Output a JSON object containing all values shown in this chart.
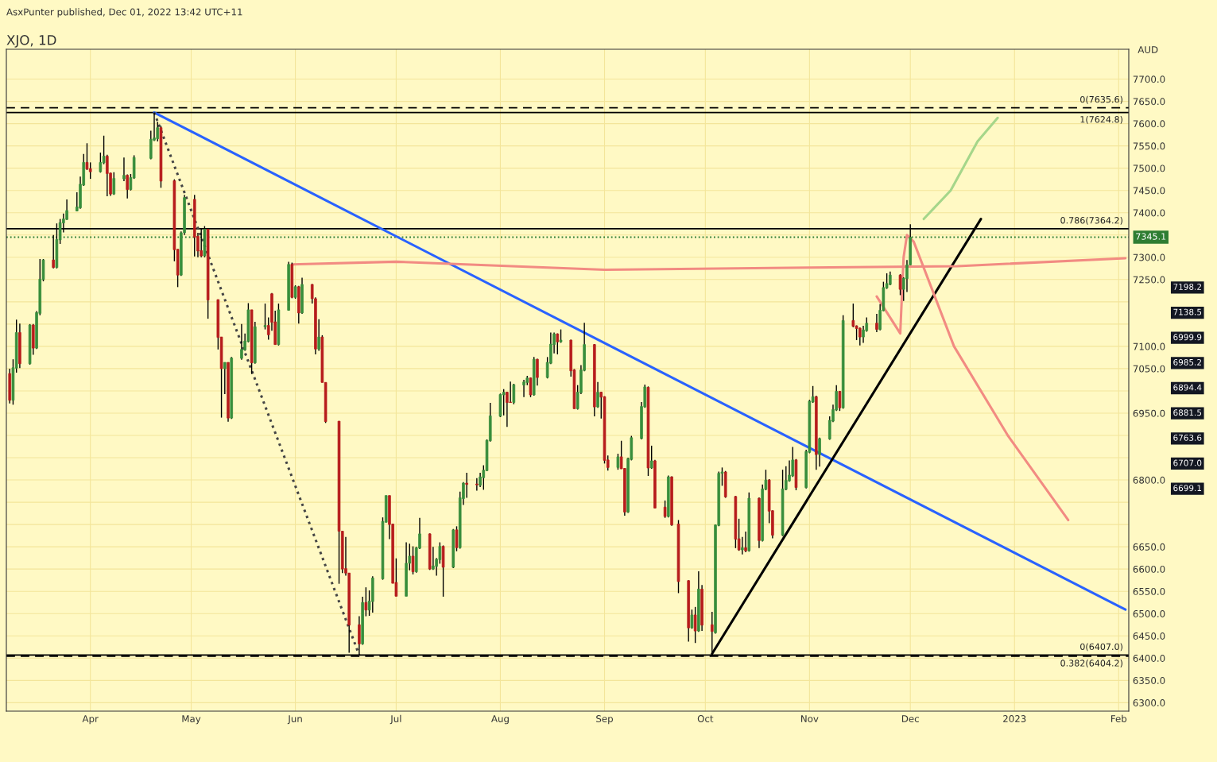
{
  "chart_data": {
    "type": "candlestick",
    "title": "XJO, 1D",
    "ylabel": "AUD",
    "annotations": [
      "AsxPunter published, Dec 01, 2022 13:42 UTC+11",
      "7198.2",
      "7138.5",
      "6999.9",
      "6985.2",
      "6894.4",
      "6881.5",
      "6763.6",
      "6707.0",
      "6699.1"
    ],
    "x": [
      "2022-03-08",
      "2022-03-09",
      "2022-03-10",
      "2022-03-11",
      "2022-03-14",
      "2022-03-15",
      "2022-03-16",
      "2022-03-17",
      "2022-03-18",
      "2022-03-21",
      "2022-03-22",
      "2022-03-23",
      "2022-03-24",
      "2022-03-25",
      "2022-03-28",
      "2022-03-29",
      "2022-03-30",
      "2022-03-31",
      "2022-04-01",
      "2022-04-04",
      "2022-04-05",
      "2022-04-06",
      "2022-04-07",
      "2022-04-08",
      "2022-04-11",
      "2022-04-12",
      "2022-04-13",
      "2022-04-14",
      "2022-04-19",
      "2022-04-20",
      "2022-04-21",
      "2022-04-22",
      "2022-04-26",
      "2022-04-27",
      "2022-04-28",
      "2022-04-29",
      "2022-05-02",
      "2022-05-03",
      "2022-05-04",
      "2022-05-05",
      "2022-05-06",
      "2022-05-09",
      "2022-05-10",
      "2022-05-11",
      "2022-05-12",
      "2022-05-13",
      "2022-05-16",
      "2022-05-17",
      "2022-05-18",
      "2022-05-19",
      "2022-05-20",
      "2022-05-23",
      "2022-05-24",
      "2022-05-25",
      "2022-05-26",
      "2022-05-27",
      "2022-05-30",
      "2022-05-31",
      "2022-06-01",
      "2022-06-02",
      "2022-06-03",
      "2022-06-06",
      "2022-06-07",
      "2022-06-08",
      "2022-06-09",
      "2022-06-10",
      "2022-06-14",
      "2022-06-15",
      "2022-06-16",
      "2022-06-17",
      "2022-06-20",
      "2022-06-21",
      "2022-06-22",
      "2022-06-23",
      "2022-06-24",
      "2022-06-27",
      "2022-06-28",
      "2022-06-29",
      "2022-06-30",
      "2022-07-01",
      "2022-07-04",
      "2022-07-05",
      "2022-07-06",
      "2022-07-07",
      "2022-07-08",
      "2022-07-11",
      "2022-07-12",
      "2022-07-13",
      "2022-07-14",
      "2022-07-15",
      "2022-07-18",
      "2022-07-19",
      "2022-07-20",
      "2022-07-21",
      "2022-07-22",
      "2022-07-25",
      "2022-07-26",
      "2022-07-27",
      "2022-07-28",
      "2022-07-29",
      "2022-08-01",
      "2022-08-02",
      "2022-08-03",
      "2022-08-04",
      "2022-08-05",
      "2022-08-08",
      "2022-08-09",
      "2022-08-10",
      "2022-08-11",
      "2022-08-12",
      "2022-08-15",
      "2022-08-16",
      "2022-08-17",
      "2022-08-18",
      "2022-08-19",
      "2022-08-22",
      "2022-08-23",
      "2022-08-24",
      "2022-08-25",
      "2022-08-26",
      "2022-08-29",
      "2022-08-30",
      "2022-08-31",
      "2022-09-01",
      "2022-09-02",
      "2022-09-05",
      "2022-09-06",
      "2022-09-07",
      "2022-09-08",
      "2022-09-09",
      "2022-09-12",
      "2022-09-13",
      "2022-09-14",
      "2022-09-15",
      "2022-09-16",
      "2022-09-19",
      "2022-09-20",
      "2022-09-21",
      "2022-09-23",
      "2022-09-26",
      "2022-09-27",
      "2022-09-28",
      "2022-09-29",
      "2022-09-30",
      "2022-10-03",
      "2022-10-04",
      "2022-10-05",
      "2022-10-06",
      "2022-10-07",
      "2022-10-10",
      "2022-10-11",
      "2022-10-12",
      "2022-10-13",
      "2022-10-14",
      "2022-10-17",
      "2022-10-18",
      "2022-10-19",
      "2022-10-20",
      "2022-10-21",
      "2022-10-24",
      "2022-10-25",
      "2022-10-26",
      "2022-10-27",
      "2022-10-28",
      "2022-10-31",
      "2022-11-01",
      "2022-11-02",
      "2022-11-03",
      "2022-11-04",
      "2022-11-07",
      "2022-11-08",
      "2022-11-09",
      "2022-11-10",
      "2022-11-11",
      "2022-11-14",
      "2022-11-15",
      "2022-11-16",
      "2022-11-17",
      "2022-11-18",
      "2022-11-21",
      "2022-11-22",
      "2022-11-23",
      "2022-11-24",
      "2022-11-25",
      "2022-11-28",
      "2022-11-29",
      "2022-11-30",
      "2022-12-01"
    ],
    "ohlc": [
      [
        7039,
        7050,
        6972,
        6979
      ],
      [
        6979,
        7071,
        6969,
        7052
      ],
      [
        7051,
        7160,
        7041,
        7131
      ],
      [
        7131,
        7151,
        7051,
        7061
      ],
      [
        7061,
        7150,
        7059,
        7148
      ],
      [
        7148,
        7150,
        7081,
        7096
      ],
      [
        7096,
        7179,
        7094,
        7176
      ],
      [
        7174,
        7296,
        7170,
        7251
      ],
      [
        7250,
        7296,
        7246,
        7294
      ],
      [
        7294,
        7350,
        7275,
        7277
      ],
      [
        7277,
        7376,
        7275,
        7340
      ],
      [
        7339,
        7386,
        7330,
        7378
      ],
      [
        7377,
        7398,
        7356,
        7386
      ],
      [
        7385,
        7430,
        7384,
        7405
      ],
      [
        7404,
        7446,
        7403,
        7413
      ],
      [
        7411,
        7481,
        7409,
        7464
      ],
      [
        7462,
        7532,
        7460,
        7513
      ],
      [
        7513,
        7556,
        7496,
        7498
      ],
      [
        7499,
        7513,
        7476,
        7492
      ],
      [
        7492,
        7535,
        7490,
        7513
      ],
      [
        7512,
        7573,
        7509,
        7527
      ],
      [
        7527,
        7530,
        7437,
        7488
      ],
      [
        7489,
        7490,
        7438,
        7442
      ],
      [
        7442,
        7491,
        7440,
        7477
      ],
      [
        7476,
        7524,
        7471,
        7484
      ],
      [
        7484,
        7486,
        7432,
        7452
      ],
      [
        7452,
        7487,
        7450,
        7479
      ],
      [
        7478,
        7529,
        7476,
        7524
      ],
      [
        7522,
        7584,
        7520,
        7565
      ],
      [
        7563,
        7625,
        7561,
        7568
      ],
      [
        7566,
        7604,
        7560,
        7591
      ],
      [
        7591,
        7595,
        7456,
        7471
      ],
      [
        7472,
        7475,
        7291,
        7317
      ],
      [
        7318,
        7318,
        7233,
        7260
      ],
      [
        7260,
        7358,
        7258,
        7355
      ],
      [
        7355,
        7440,
        7350,
        7434
      ],
      [
        7430,
        7440,
        7302,
        7345
      ],
      [
        7347,
        7355,
        7300,
        7314
      ],
      [
        7315,
        7365,
        7300,
        7303
      ],
      [
        7303,
        7370,
        7300,
        7363
      ],
      [
        7363,
        7365,
        7162,
        7204
      ],
      [
        7205,
        7205,
        7093,
        7120
      ],
      [
        7121,
        7121,
        6940,
        7050
      ],
      [
        7050,
        7064,
        6993,
        7064
      ],
      [
        7064,
        7064,
        6931,
        6939
      ],
      [
        6939,
        7076,
        6937,
        7074
      ],
      [
        7073,
        7150,
        7070,
        7093
      ],
      [
        7092,
        7129,
        7090,
        7112
      ],
      [
        7111,
        7197,
        7109,
        7182
      ],
      [
        7182,
        7182,
        7038,
        7063
      ],
      [
        7063,
        7155,
        7061,
        7144
      ],
      [
        7144,
        7196,
        7138,
        7147
      ],
      [
        7147,
        7165,
        7115,
        7126
      ],
      [
        7218,
        7220,
        7135,
        7154
      ],
      [
        7155,
        7180,
        7104,
        7104
      ],
      [
        7104,
        7196,
        7102,
        7182
      ],
      [
        7181,
        7290,
        7180,
        7284
      ],
      [
        7284,
        7288,
        7208,
        7210
      ],
      [
        7210,
        7237,
        7207,
        7234
      ],
      [
        7234,
        7236,
        7151,
        7175
      ],
      [
        7175,
        7254,
        7173,
        7239
      ],
      [
        7239,
        7240,
        7196,
        7207
      ],
      [
        7207,
        7210,
        7082,
        7094
      ],
      [
        7094,
        7161,
        7090,
        7121
      ],
      [
        7121,
        7125,
        7019,
        7019
      ],
      [
        7019,
        7019,
        6928,
        6931
      ],
      [
        6932,
        6932,
        6567,
        6685
      ],
      [
        6685,
        6685,
        6591,
        6600
      ],
      [
        6601,
        6672,
        6585,
        6591
      ],
      [
        6591,
        6591,
        6412,
        6474
      ],
      [
        6475,
        6494,
        6407,
        6432
      ],
      [
        6432,
        6538,
        6430,
        6525
      ],
      [
        6525,
        6559,
        6494,
        6508
      ],
      [
        6508,
        6552,
        6495,
        6528
      ],
      [
        6527,
        6584,
        6502,
        6580
      ],
      [
        6578,
        6716,
        6576,
        6707
      ],
      [
        6705,
        6765,
        6705,
        6765
      ],
      [
        6765,
        6765,
        6667,
        6700
      ],
      [
        6701,
        6701,
        6568,
        6568
      ],
      [
        6570,
        6624,
        6539,
        6539
      ],
      [
        6539,
        6660,
        6539,
        6613
      ],
      [
        6613,
        6657,
        6597,
        6629
      ],
      [
        6629,
        6651,
        6588,
        6594
      ],
      [
        6594,
        6650,
        6592,
        6648
      ],
      [
        6647,
        6715,
        6645,
        6679
      ],
      [
        6679,
        6680,
        6598,
        6600
      ],
      [
        6600,
        6650,
        6598,
        6607
      ],
      [
        6606,
        6625,
        6585,
        6622
      ],
      [
        6621,
        6660,
        6612,
        6651
      ],
      [
        6651,
        6653,
        6538,
        6604
      ],
      [
        6604,
        6690,
        6602,
        6688
      ],
      [
        6688,
        6696,
        6640,
        6648
      ],
      [
        6648,
        6774,
        6646,
        6760
      ],
      [
        6758,
        6795,
        6744,
        6793
      ],
      [
        6793,
        6816,
        6760,
        6790
      ],
      [
        6791,
        6804,
        6776,
        6789
      ],
      [
        6788,
        6816,
        6784,
        6807
      ],
      [
        6805,
        6833,
        6778,
        6822
      ],
      [
        6821,
        6891,
        6820,
        6889
      ],
      [
        6888,
        6973,
        6886,
        6944
      ],
      [
        6943,
        6994,
        6941,
        6992
      ],
      [
        6991,
        7004,
        6945,
        6997
      ],
      [
        6997,
        6998,
        6919,
        6974
      ],
      [
        6975,
        7021,
        6973,
        6974
      ],
      [
        6974,
        7016,
        6970,
        7014
      ],
      [
        7013,
        7025,
        6986,
        7020
      ],
      [
        7019,
        7034,
        7013,
        7029
      ],
      [
        7029,
        7030,
        6986,
        6991
      ],
      [
        6991,
        7076,
        6989,
        7071
      ],
      [
        7071,
        7072,
        7012,
        7030
      ],
      [
        7030,
        7076,
        7028,
        7064
      ],
      [
        7062,
        7131,
        7060,
        7105
      ],
      [
        7104,
        7131,
        7084,
        7128
      ],
      [
        7128,
        7129,
        7082,
        7110
      ],
      [
        7110,
        7138,
        7108,
        7114
      ],
      [
        7114,
        7115,
        7032,
        7045
      ],
      [
        7047,
        7049,
        6960,
        6960
      ],
      [
        6960,
        7013,
        6958,
        6997
      ],
      [
        6996,
        7058,
        6993,
        7047
      ],
      [
        7046,
        7153,
        7044,
        7104
      ],
      [
        7104,
        7105,
        6943,
        6964
      ],
      [
        6964,
        7020,
        6962,
        6997
      ],
      [
        6997,
        6998,
        6938,
        6986
      ],
      [
        6987,
        6988,
        6837,
        6844
      ],
      [
        6845,
        6855,
        6821,
        6828
      ],
      [
        6828,
        6859,
        6823,
        6852
      ],
      [
        6852,
        6888,
        6825,
        6825
      ],
      [
        6826,
        6827,
        6720,
        6728
      ],
      [
        6728,
        6850,
        6726,
        6848
      ],
      [
        6846,
        6899,
        6844,
        6895
      ],
      [
        6893,
        6975,
        6891,
        6965
      ],
      [
        6964,
        7014,
        6962,
        7009
      ],
      [
        7008,
        7010,
        6809,
        6827
      ],
      [
        6827,
        6877,
        6825,
        6843
      ],
      [
        6843,
        6845,
        6737,
        6737
      ],
      [
        6739,
        6754,
        6715,
        6718
      ],
      [
        6718,
        6810,
        6716,
        6807
      ],
      [
        6807,
        6808,
        6697,
        6699
      ],
      [
        6701,
        6710,
        6546,
        6572
      ],
      [
        6574,
        6575,
        6437,
        6468
      ],
      [
        6468,
        6509,
        6466,
        6497
      ],
      [
        6497,
        6515,
        6434,
        6461
      ],
      [
        6461,
        6595,
        6459,
        6555
      ],
      [
        6555,
        6564,
        6461,
        6474
      ],
      [
        6475,
        6504,
        6412,
        6460
      ],
      [
        6457,
        6700,
        6455,
        6699
      ],
      [
        6698,
        6819,
        6696,
        6815
      ],
      [
        6815,
        6828,
        6787,
        6818
      ],
      [
        6818,
        6820,
        6760,
        6762
      ],
      [
        6763,
        6764,
        6647,
        6667
      ],
      [
        6668,
        6713,
        6641,
        6643
      ],
      [
        6643,
        6672,
        6633,
        6648
      ],
      [
        6648,
        6684,
        6638,
        6641
      ],
      [
        6641,
        6772,
        6639,
        6759
      ],
      [
        6759,
        6761,
        6647,
        6664
      ],
      [
        6664,
        6790,
        6662,
        6780
      ],
      [
        6779,
        6823,
        6777,
        6800
      ],
      [
        6800,
        6802,
        6703,
        6730
      ],
      [
        6731,
        6732,
        6669,
        6676
      ],
      [
        6676,
        6823,
        6674,
        6780
      ],
      [
        6779,
        6831,
        6777,
        6799
      ],
      [
        6798,
        6844,
        6796,
        6811
      ],
      [
        6809,
        6874,
        6807,
        6845
      ],
      [
        6845,
        6847,
        6777,
        6783
      ],
      [
        6783,
        6868,
        6781,
        6864
      ],
      [
        6862,
        6980,
        6860,
        6977
      ],
      [
        6975,
        7011,
        6973,
        6987
      ],
      [
        6987,
        6989,
        6823,
        6857
      ],
      [
        6857,
        6895,
        6830,
        6893
      ],
      [
        6892,
        6943,
        6890,
        6934
      ],
      [
        6932,
        6969,
        6930,
        6958
      ],
      [
        6957,
        7013,
        6955,
        6999
      ],
      [
        6999,
        7000,
        6955,
        6962
      ],
      [
        6962,
        7170,
        6960,
        7158
      ],
      [
        7158,
        7196,
        7143,
        7145
      ],
      [
        7146,
        7147,
        7114,
        7140
      ],
      [
        7141,
        7142,
        7102,
        7121
      ],
      [
        7121,
        7146,
        7108,
        7137
      ],
      [
        7135,
        7165,
        7133,
        7152
      ],
      [
        7152,
        7173,
        7132,
        7138
      ],
      [
        7138,
        7195,
        7136,
        7181
      ],
      [
        7180,
        7245,
        7179,
        7232
      ],
      [
        7231,
        7264,
        7229,
        7241
      ],
      [
        7239,
        7268,
        7237,
        7260
      ],
      [
        7260,
        7262,
        7215,
        7228
      ],
      [
        7228,
        7255,
        7202,
        7253
      ],
      [
        7252,
        7294,
        7222,
        7283
      ],
      [
        7283,
        7374,
        7282,
        7345.1
      ]
    ],
    "series": [
      {
        "type": "line",
        "color": "#2962ff",
        "line_style": "solid",
        "x": [
          "2022-04-20",
          "2023-02-03"
        ],
        "values": [
          7625,
          6509
        ]
      },
      {
        "type": "line",
        "color": "#444444",
        "line_style": "dotted",
        "x": [
          "2022-04-20",
          "2022-06-20"
        ],
        "values": [
          7625,
          6407
        ]
      },
      {
        "type": "line",
        "color": "#000000",
        "line_style": "solid",
        "x": [
          "2022-10-03",
          "2022-12-22"
        ],
        "values": [
          6410,
          7386
        ]
      },
      {
        "type": "line",
        "color": "#f28b82",
        "line_style": "solid",
        "x": [
          "2022-05-31",
          "2022-07-01",
          "2022-09-01",
          "2022-11-01",
          "2022-12-15",
          "2023-02-03"
        ],
        "values": [
          7284,
          7290,
          7272,
          7277,
          7280,
          7298
        ]
      },
      {
        "type": "line",
        "color": "#f28b82",
        "line_style": "solid",
        "x": [
          "2022-11-21",
          "2022-11-28",
          "2022-11-29",
          "2022-11-30",
          "2022-12-02",
          "2022-12-14",
          "2022-12-30",
          "2023-01-17"
        ],
        "values": [
          7212,
          7129,
          7300,
          7350,
          7335,
          7100,
          6900,
          6710
        ]
      },
      {
        "type": "line",
        "color": "#a5d68a",
        "line_style": "solid",
        "x": [
          "2022-12-05",
          "2022-12-13",
          "2022-12-21",
          "2022-12-27"
        ],
        "values": [
          7386,
          7450,
          7560,
          7613
        ]
      }
    ],
    "ref_lines": [
      {
        "axis": "y",
        "value": 7635.6,
        "label": "0(7635.6)",
        "color": "#000000",
        "line_style": "dashed"
      },
      {
        "axis": "y",
        "value": 7624.8,
        "label": "1(7624.8)",
        "color": "#000000",
        "line_style": "solid"
      },
      {
        "axis": "y",
        "value": 7364.2,
        "label": "0.786(7364.2)",
        "color": "#000000",
        "line_style": "solid"
      },
      {
        "axis": "y",
        "value": 7345.1,
        "label": "7345.1",
        "color": "#2e7d32",
        "line_style": "dotted"
      },
      {
        "axis": "y",
        "value": 6407.0,
        "label": "0(6407.0)",
        "color": "#000000",
        "line_style": "solid"
      },
      {
        "axis": "y",
        "value": 6404.2,
        "label": "0.382(6404.2)",
        "color": "#000000",
        "line_style": "dashed"
      }
    ],
    "xlim": [
      "2022-03-07",
      "2023-02-04"
    ],
    "xticks": [
      {
        "value": "2022-04-01",
        "label": "Apr"
      },
      {
        "value": "2022-05-01",
        "label": "May"
      },
      {
        "value": "2022-06-01",
        "label": "Jun"
      },
      {
        "value": "2022-07-01",
        "label": "Jul"
      },
      {
        "value": "2022-08-01",
        "label": "Aug"
      },
      {
        "value": "2022-09-01",
        "label": "Sep"
      },
      {
        "value": "2022-10-01",
        "label": "Oct"
      },
      {
        "value": "2022-11-01",
        "label": "Nov"
      },
      {
        "value": "2022-12-01",
        "label": "Dec"
      },
      {
        "value": "2023-01-01",
        "label": "2023"
      },
      {
        "value": "2023-02-01",
        "label": "Feb"
      }
    ],
    "ylim": [
      6281,
      7767
    ],
    "yticks": [
      {
        "value": 6300,
        "label": "6300.0"
      },
      {
        "value": 6350,
        "label": "6350.0"
      },
      {
        "value": 6400,
        "label": "6400.0"
      },
      {
        "value": 6450,
        "label": "6450.0"
      },
      {
        "value": 6500,
        "label": "6500.0"
      },
      {
        "value": 6550,
        "label": "6550.0"
      },
      {
        "value": 6600,
        "label": "6600.0"
      },
      {
        "value": 6650,
        "label": "6650.0"
      },
      {
        "value": 6700,
        "label": null
      },
      {
        "value": 6750,
        "label": null
      },
      {
        "value": 6800,
        "label": "6800.0"
      },
      {
        "value": 6850,
        "label": null
      },
      {
        "value": 6900,
        "label": null
      },
      {
        "value": 6950,
        "label": "6950.0"
      },
      {
        "value": 7000,
        "label": null
      },
      {
        "value": 7050,
        "label": "7050.0"
      },
      {
        "value": 7100,
        "label": "7100.0"
      },
      {
        "value": 7150,
        "label": null
      },
      {
        "value": 7200,
        "label": null
      },
      {
        "value": 7250,
        "label": "7250.0"
      },
      {
        "value": 7300,
        "label": "7300.0"
      },
      {
        "value": 7350,
        "label": null
      },
      {
        "value": 7400,
        "label": "7400.0"
      },
      {
        "value": 7450,
        "label": "7450.0"
      },
      {
        "value": 7500,
        "label": "7500.0"
      },
      {
        "value": 7550,
        "label": "7550.0"
      },
      {
        "value": 7600,
        "label": "7600.0"
      },
      {
        "value": 7650,
        "label": "7650.0"
      },
      {
        "value": 7700,
        "label": "7700.0"
      }
    ],
    "grid": true
  }
}
